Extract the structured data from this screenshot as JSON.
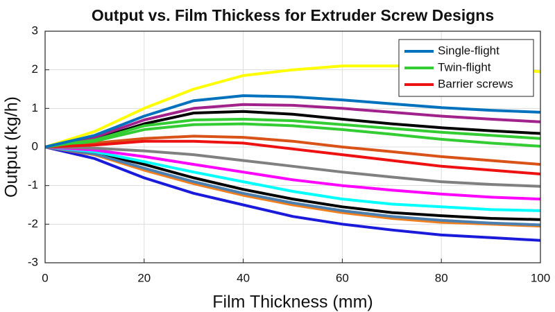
{
  "chart_data": {
    "type": "line",
    "title": "Output vs. Film Thickess for Extruder Screw Designs",
    "x_label": "Film Thickness (mm)",
    "y_label": "Output (kg/h)",
    "x": [
      0,
      10,
      20,
      30,
      40,
      50,
      60,
      70,
      80,
      90,
      100
    ],
    "series": [
      {
        "name": "Single-flight",
        "color": "#0072bd",
        "values": [
          0,
          0.3,
          0.8,
          1.2,
          1.33,
          1.3,
          1.22,
          1.12,
          1.02,
          0.95,
          0.9
        ]
      },
      {
        "name": "Twin-flight",
        "color": "#33cc33",
        "values": [
          0,
          0.18,
          0.55,
          0.7,
          0.72,
          0.68,
          0.58,
          0.48,
          0.38,
          0.3,
          0.22
        ]
      },
      {
        "name": "Barrier screws",
        "color": "#ee1111",
        "values": [
          0,
          0.05,
          0.15,
          0.15,
          0.1,
          -0.05,
          -0.2,
          -0.35,
          -0.5,
          -0.6,
          -0.7
        ]
      },
      {
        "color": "#ffff00",
        "values": [
          0,
          0.4,
          1.0,
          1.5,
          1.85,
          2.0,
          2.1,
          2.1,
          2.1,
          2.05,
          1.95
        ]
      },
      {
        "color": "#a0228a",
        "values": [
          0,
          0.25,
          0.7,
          1.0,
          1.1,
          1.08,
          1.0,
          0.9,
          0.8,
          0.72,
          0.65
        ]
      },
      {
        "color": "#000000",
        "values": [
          0,
          0.2,
          0.6,
          0.88,
          0.92,
          0.85,
          0.72,
          0.6,
          0.5,
          0.42,
          0.35
        ]
      },
      {
        "color": "#33cc33",
        "values": [
          0,
          0.15,
          0.45,
          0.58,
          0.6,
          0.55,
          0.45,
          0.33,
          0.2,
          0.1,
          0.02
        ]
      },
      {
        "color": "#d95319",
        "values": [
          0,
          0.1,
          0.22,
          0.28,
          0.25,
          0.15,
          0.0,
          -0.12,
          -0.25,
          -0.35,
          -0.45
        ]
      },
      {
        "color": "#808080",
        "values": [
          0,
          -0.03,
          -0.1,
          -0.2,
          -0.35,
          -0.5,
          -0.65,
          -0.78,
          -0.9,
          -0.97,
          -1.02
        ]
      },
      {
        "color": "#ff00ff",
        "values": [
          0,
          -0.08,
          -0.25,
          -0.45,
          -0.65,
          -0.85,
          -1.0,
          -1.12,
          -1.22,
          -1.3,
          -1.35
        ]
      },
      {
        "color": "#00ffff",
        "values": [
          0,
          -0.12,
          -0.38,
          -0.65,
          -0.9,
          -1.15,
          -1.35,
          -1.48,
          -1.55,
          -1.62,
          -1.65
        ]
      },
      {
        "color": "#4a7fb0",
        "values": [
          0,
          -0.18,
          -0.55,
          -0.9,
          -1.2,
          -1.45,
          -1.65,
          -1.8,
          -1.9,
          -1.97,
          -2.02
        ]
      },
      {
        "color": "#000000",
        "values": [
          0,
          -0.15,
          -0.45,
          -0.8,
          -1.1,
          -1.35,
          -1.55,
          -1.7,
          -1.78,
          -1.85,
          -1.88
        ]
      },
      {
        "color": "#f07f20",
        "values": [
          0,
          -0.2,
          -0.6,
          -0.95,
          -1.25,
          -1.5,
          -1.7,
          -1.85,
          -1.95,
          -2.0,
          -2.05
        ]
      },
      {
        "color": "#1a1adb",
        "values": [
          0,
          -0.3,
          -0.8,
          -1.2,
          -1.5,
          -1.8,
          -2.0,
          -2.15,
          -2.28,
          -2.35,
          -2.42
        ]
      }
    ],
    "xlim": [
      0,
      100
    ],
    "xticks": [
      0,
      20,
      40,
      60,
      80,
      100
    ],
    "ylim": [
      -3,
      3
    ],
    "yticks": [
      -3,
      -2,
      -1,
      0,
      1,
      2,
      3
    ],
    "grid": true,
    "legend_position": "upper-right"
  }
}
